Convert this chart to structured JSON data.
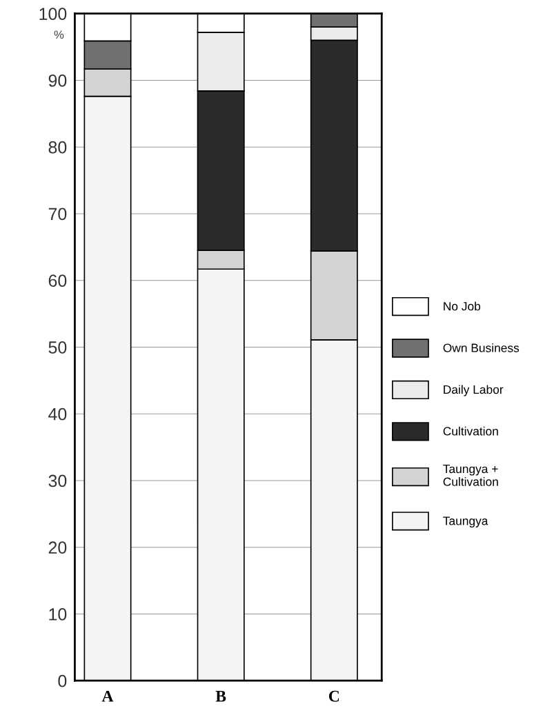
{
  "chart_data": {
    "type": "bar",
    "stacked": true,
    "ylabel": "%",
    "categories": [
      "A",
      "B",
      "C"
    ],
    "series": [
      {
        "name": "Taungya",
        "color": "#f4f4f4",
        "values": [
          87.6,
          61.7,
          51.1
        ]
      },
      {
        "name": "Taungya + Cultivation",
        "color": "#d4d4d4",
        "values": [
          4.1,
          2.8,
          13.3
        ]
      },
      {
        "name": "Cultivation",
        "color": "#2b2b2b",
        "values": [
          0,
          23.9,
          31.6
        ]
      },
      {
        "name": "Daily Labor",
        "color": "#ebebeb",
        "values": [
          0,
          8.8,
          2.0
        ]
      },
      {
        "name": "Own Business",
        "color": "#707070",
        "values": [
          4.2,
          0,
          2.0
        ]
      },
      {
        "name": "No Job",
        "color": "#ffffff",
        "values": [
          4.1,
          2.8,
          0
        ]
      }
    ],
    "ylim": [
      0,
      100
    ],
    "yticks": [
      0,
      10,
      20,
      30,
      40,
      50,
      60,
      70,
      80,
      90,
      100
    ],
    "grid": "y",
    "legend": "right"
  }
}
